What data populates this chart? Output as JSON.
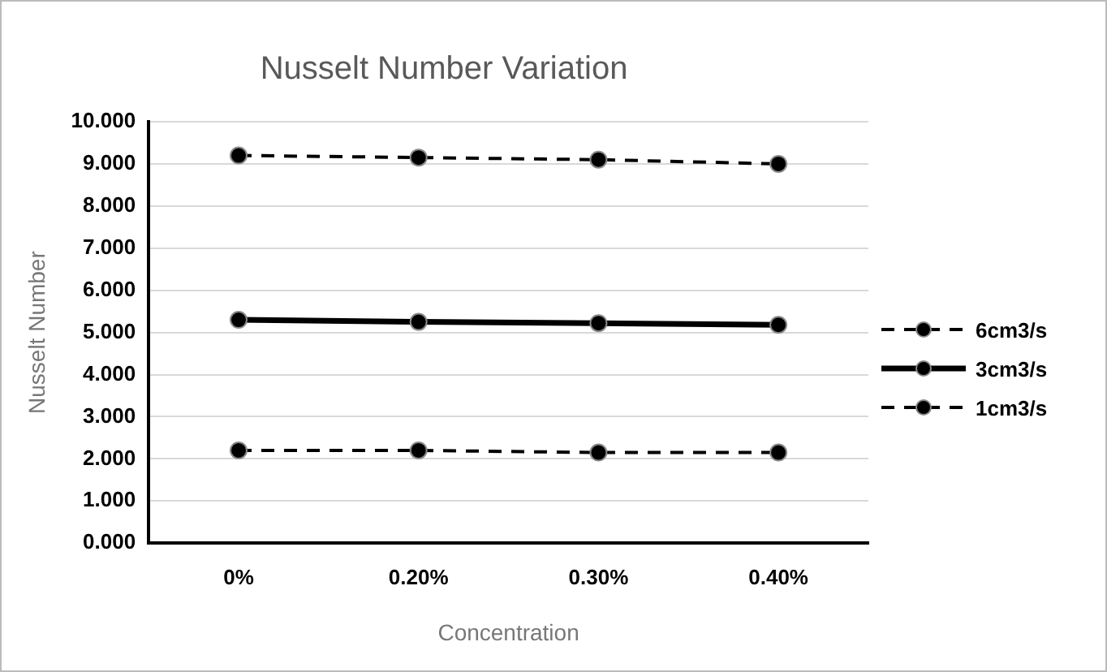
{
  "chart_data": {
    "type": "line",
    "title": "Nusselt Number Variation",
    "xlabel": "Concentration",
    "ylabel": "Nusselt Number",
    "categories": [
      "0%",
      "0.20%",
      "0.30%",
      "0.40%"
    ],
    "series": [
      {
        "name": "6cm3/s",
        "color": "#000000",
        "values": [
          9.2,
          9.15,
          9.1,
          9.0
        ],
        "line_style": "dashed"
      },
      {
        "name": "3cm3/s",
        "color": "#000000",
        "values": [
          5.3,
          5.25,
          5.22,
          5.18
        ],
        "line_style": "solid"
      },
      {
        "name": "1cm3/s",
        "color": "#000000",
        "values": [
          2.2,
          2.2,
          2.15,
          2.15
        ],
        "line_style": "dashed"
      }
    ],
    "ylim": [
      0,
      10
    ],
    "yticks": [
      {
        "value": 0,
        "label": "0.000"
      },
      {
        "value": 1,
        "label": "1.000"
      },
      {
        "value": 2,
        "label": "2.000"
      },
      {
        "value": 3,
        "label": "3.000"
      },
      {
        "value": 4,
        "label": "4.000"
      },
      {
        "value": 5,
        "label": "5.000"
      },
      {
        "value": 6,
        "label": "6.000"
      },
      {
        "value": 7,
        "label": "7.000"
      },
      {
        "value": 8,
        "label": "8.000"
      },
      {
        "value": 9,
        "label": "9.000"
      },
      {
        "value": 10,
        "label": "10.000"
      }
    ],
    "grid": "y",
    "legend": "right",
    "marker": "circle"
  }
}
